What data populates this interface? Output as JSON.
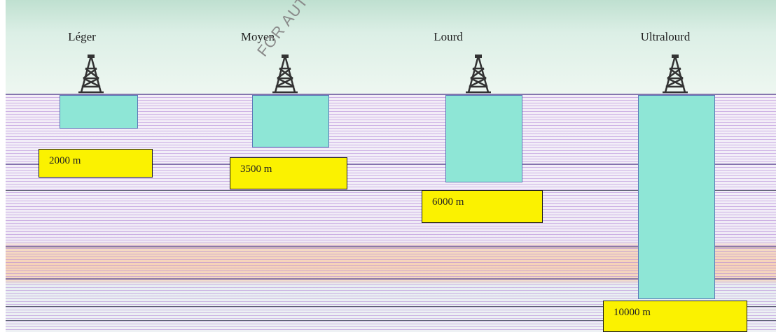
{
  "categories": [
    {
      "label": "Léger",
      "depth_label": "2000 m"
    },
    {
      "label": "Moyen",
      "depth_label": "3500 m"
    },
    {
      "label": "Lourd",
      "depth_label": "6000 m"
    },
    {
      "label": "Ultralourd",
      "depth_label": "10000 m"
    }
  ],
  "watermark": "FOR AUTH",
  "colors": {
    "well": "#8ee6d6",
    "depth_box": "#fbf200",
    "strata_line": "#b082d6",
    "sky": "#dcefe6"
  },
  "icons": [
    "drilling-rig-icon"
  ]
}
